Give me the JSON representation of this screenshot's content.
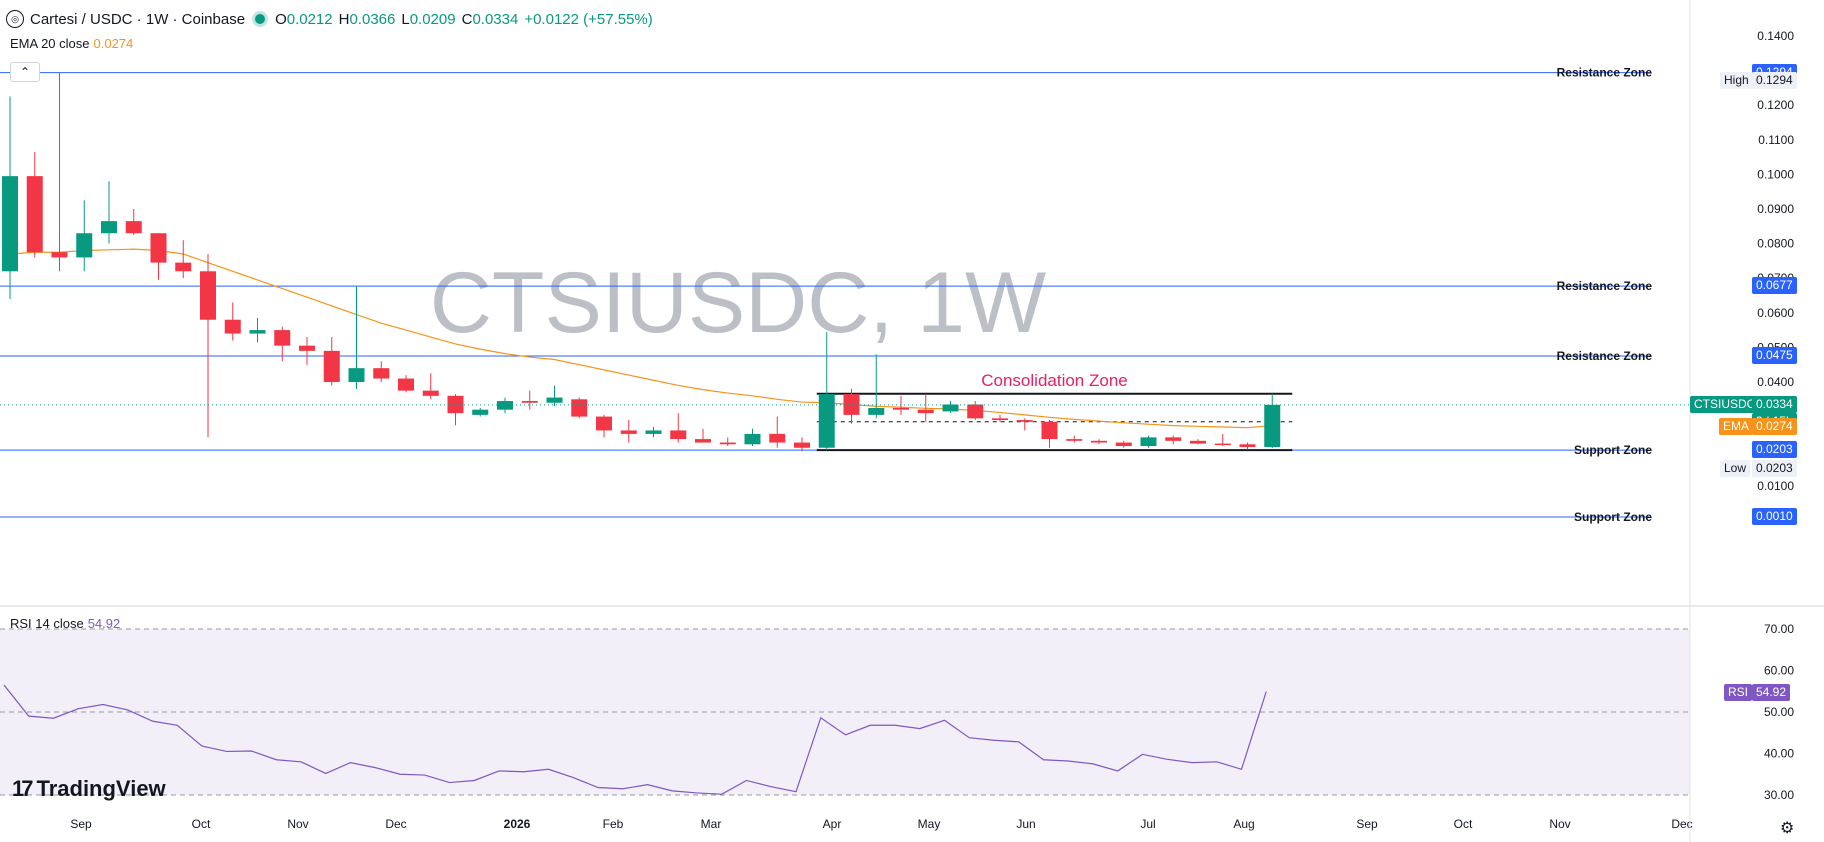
{
  "header": {
    "symbol": "Cartesi / USDC · 1W · Coinbase",
    "open_label": "O",
    "open": "0.0212",
    "high_label": "H",
    "high": "0.0366",
    "low_label": "L",
    "low": "0.0209",
    "close_label": "C",
    "close": "0.0334",
    "change": "+0.0122 (+57.55%)"
  },
  "ema_legend": {
    "label": "EMA 20 close",
    "value": "0.0274"
  },
  "rsi_legend": {
    "label": "RSI 14 close",
    "value": "54.92"
  },
  "watermark": "CTSIUSDC, 1W",
  "logo": {
    "mark": "17",
    "text": "TradingView"
  },
  "collapse_icon": "⌃",
  "settings_icon": "⚙",
  "colors": {
    "up": "#089981",
    "down": "#f23645",
    "ema": "#f7931a",
    "rsi": "#7e57c2",
    "level_line": "#2962ff",
    "level_label": "#2962ff",
    "annotation": "#e91e63"
  },
  "chart_data": [
    {
      "type": "candlestick",
      "title": "CTSIUSDC, 1W",
      "price_axis_ticks": [
        "0.1400",
        "0.1200",
        "0.1100",
        "0.1000",
        "0.0900",
        "0.0800",
        "0.0700",
        "0.0600",
        "0.0500",
        "0.0400",
        "0.0100"
      ],
      "time_axis_ticks": [
        "Sep",
        "Oct",
        "Nov",
        "Dec",
        "2026",
        "Feb",
        "Mar",
        "Apr",
        "May",
        "Jun",
        "Jul",
        "Aug",
        "Sep",
        "Oct",
        "Nov",
        "Dec"
      ],
      "candles": [
        {
          "o": 0.072,
          "h": 0.1225,
          "l": 0.064,
          "c": 0.0995
        },
        {
          "o": 0.0995,
          "h": 0.1065,
          "l": 0.076,
          "c": 0.0775
        },
        {
          "o": 0.0775,
          "h": 0.1294,
          "l": 0.072,
          "c": 0.076
        },
        {
          "o": 0.076,
          "h": 0.0925,
          "l": 0.072,
          "c": 0.083
        },
        {
          "o": 0.083,
          "h": 0.098,
          "l": 0.08,
          "c": 0.0865
        },
        {
          "o": 0.0865,
          "h": 0.09,
          "l": 0.0825,
          "c": 0.083
        },
        {
          "o": 0.083,
          "h": 0.083,
          "l": 0.0695,
          "c": 0.0745
        },
        {
          "o": 0.0745,
          "h": 0.081,
          "l": 0.07,
          "c": 0.072
        },
        {
          "o": 0.072,
          "h": 0.077,
          "l": 0.024,
          "c": 0.058
        },
        {
          "o": 0.058,
          "h": 0.063,
          "l": 0.052,
          "c": 0.054
        },
        {
          "o": 0.054,
          "h": 0.0585,
          "l": 0.0515,
          "c": 0.055
        },
        {
          "o": 0.055,
          "h": 0.056,
          "l": 0.046,
          "c": 0.0505
        },
        {
          "o": 0.0505,
          "h": 0.053,
          "l": 0.045,
          "c": 0.049
        },
        {
          "o": 0.049,
          "h": 0.053,
          "l": 0.039,
          "c": 0.04
        },
        {
          "o": 0.04,
          "h": 0.0677,
          "l": 0.038,
          "c": 0.044
        },
        {
          "o": 0.044,
          "h": 0.046,
          "l": 0.04,
          "c": 0.041
        },
        {
          "o": 0.041,
          "h": 0.042,
          "l": 0.037,
          "c": 0.0375
        },
        {
          "o": 0.0375,
          "h": 0.0425,
          "l": 0.035,
          "c": 0.036
        },
        {
          "o": 0.036,
          "h": 0.0365,
          "l": 0.0275,
          "c": 0.031
        },
        {
          "o": 0.0305,
          "h": 0.0325,
          "l": 0.03,
          "c": 0.032
        },
        {
          "o": 0.032,
          "h": 0.0355,
          "l": 0.031,
          "c": 0.0345
        },
        {
          "o": 0.0345,
          "h": 0.0375,
          "l": 0.032,
          "c": 0.034
        },
        {
          "o": 0.034,
          "h": 0.039,
          "l": 0.033,
          "c": 0.0355
        },
        {
          "o": 0.035,
          "h": 0.0355,
          "l": 0.0295,
          "c": 0.03
        },
        {
          "o": 0.03,
          "h": 0.0305,
          "l": 0.024,
          "c": 0.026
        },
        {
          "o": 0.026,
          "h": 0.029,
          "l": 0.0225,
          "c": 0.025
        },
        {
          "o": 0.025,
          "h": 0.027,
          "l": 0.024,
          "c": 0.026
        },
        {
          "o": 0.026,
          "h": 0.031,
          "l": 0.0225,
          "c": 0.0235
        },
        {
          "o": 0.0235,
          "h": 0.0265,
          "l": 0.0225,
          "c": 0.0225
        },
        {
          "o": 0.0225,
          "h": 0.024,
          "l": 0.0215,
          "c": 0.022
        },
        {
          "o": 0.022,
          "h": 0.0265,
          "l": 0.0215,
          "c": 0.025
        },
        {
          "o": 0.025,
          "h": 0.03,
          "l": 0.021,
          "c": 0.0225
        },
        {
          "o": 0.0225,
          "h": 0.024,
          "l": 0.02,
          "c": 0.021
        },
        {
          "o": 0.021,
          "h": 0.0545,
          "l": 0.0203,
          "c": 0.0365
        },
        {
          "o": 0.0365,
          "h": 0.038,
          "l": 0.028,
          "c": 0.0305
        },
        {
          "o": 0.0305,
          "h": 0.048,
          "l": 0.0295,
          "c": 0.0325
        },
        {
          "o": 0.0325,
          "h": 0.036,
          "l": 0.0305,
          "c": 0.032
        },
        {
          "o": 0.032,
          "h": 0.0365,
          "l": 0.0285,
          "c": 0.031
        },
        {
          "o": 0.0315,
          "h": 0.0345,
          "l": 0.031,
          "c": 0.0335
        },
        {
          "o": 0.0335,
          "h": 0.0345,
          "l": 0.029,
          "c": 0.0295
        },
        {
          "o": 0.0295,
          "h": 0.0305,
          "l": 0.0285,
          "c": 0.029
        },
        {
          "o": 0.029,
          "h": 0.0295,
          "l": 0.026,
          "c": 0.0285
        },
        {
          "o": 0.0285,
          "h": 0.029,
          "l": 0.021,
          "c": 0.0235
        },
        {
          "o": 0.0235,
          "h": 0.0245,
          "l": 0.0225,
          "c": 0.023
        },
        {
          "o": 0.023,
          "h": 0.0235,
          "l": 0.022,
          "c": 0.0225
        },
        {
          "o": 0.0225,
          "h": 0.023,
          "l": 0.021,
          "c": 0.0215
        },
        {
          "o": 0.0215,
          "h": 0.0245,
          "l": 0.021,
          "c": 0.024
        },
        {
          "o": 0.024,
          "h": 0.0245,
          "l": 0.022,
          "c": 0.023
        },
        {
          "o": 0.023,
          "h": 0.0235,
          "l": 0.022,
          "c": 0.0222
        },
        {
          "o": 0.0222,
          "h": 0.025,
          "l": 0.0215,
          "c": 0.022
        },
        {
          "o": 0.022,
          "h": 0.0225,
          "l": 0.0205,
          "c": 0.0212
        },
        {
          "o": 0.0212,
          "h": 0.0366,
          "l": 0.0209,
          "c": 0.0334
        }
      ],
      "ema20": [
        0.077,
        0.0775,
        0.0775,
        0.078,
        0.0782,
        0.0784,
        0.078,
        0.077,
        0.0745,
        0.072,
        0.0695,
        0.067,
        0.0645,
        0.062,
        0.0595,
        0.057,
        0.055,
        0.053,
        0.051,
        0.0495,
        0.0482,
        0.0472,
        0.0465,
        0.045,
        0.0435,
        0.042,
        0.0405,
        0.039,
        0.0378,
        0.0368,
        0.036,
        0.035,
        0.0342,
        0.034,
        0.0335,
        0.033,
        0.0327,
        0.0324,
        0.0322,
        0.0318,
        0.0312,
        0.0305,
        0.0298,
        0.0292,
        0.0287,
        0.0282,
        0.0278,
        0.0274,
        0.0272,
        0.027,
        0.0268,
        0.0274
      ],
      "horizontal_levels": [
        {
          "label": "Resistance Zone",
          "value": 0.1294,
          "tag": "0.1294"
        },
        {
          "label": "Resistance Zone",
          "value": 0.0677,
          "tag": "0.0677"
        },
        {
          "label": "Resistance Zone",
          "value": 0.0475,
          "tag": "0.0475"
        },
        {
          "label": "Support Zone",
          "value": 0.0203,
          "tag": "0.0203"
        },
        {
          "label": "Support Zone",
          "value": 0.001,
          "tag": "0.0010"
        }
      ],
      "annotation": {
        "text": "Consolidation Zone",
        "upper": 0.0366,
        "lower": 0.0203,
        "mid": 0.0285
      },
      "price_tags": {
        "last": {
          "label": "CTSIUSDC",
          "value": "0.0334",
          "countdown": "3d 15h"
        },
        "ema": {
          "label": "EMA",
          "value": "0.0274"
        },
        "high": {
          "label": "High",
          "value": "0.1294"
        },
        "low": {
          "label": "Low",
          "value": "0.0203"
        }
      }
    },
    {
      "type": "line",
      "title": "RSI 14 close",
      "ylim": [
        30,
        70
      ],
      "y_ticks": [
        "70.00",
        "60.00",
        "50.00",
        "40.00",
        "30.00"
      ],
      "bands": [
        70,
        50,
        30
      ],
      "last": {
        "label": "RSI",
        "value": "54.92"
      },
      "values": [
        56.5,
        49.0,
        48.5,
        50.8,
        51.8,
        50.5,
        47.8,
        46.8,
        41.8,
        40.5,
        40.6,
        38.5,
        38.0,
        35.2,
        37.8,
        36.6,
        35.0,
        34.8,
        33.0,
        33.5,
        35.8,
        35.6,
        36.2,
        34.2,
        31.8,
        31.5,
        32.5,
        31.0,
        30.5,
        30.2,
        33.5,
        32.0,
        30.8,
        48.6,
        44.5,
        46.8,
        46.8,
        46.0,
        48.0,
        43.8,
        43.2,
        42.8,
        38.5,
        38.2,
        37.5,
        35.8,
        39.8,
        38.6,
        37.8,
        38.0,
        36.2,
        54.92
      ]
    }
  ]
}
